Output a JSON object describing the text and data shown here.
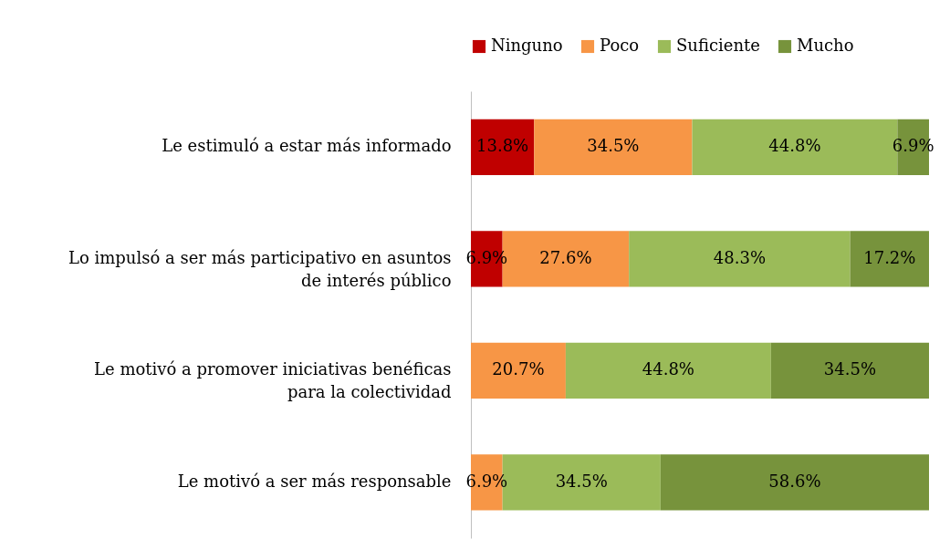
{
  "chart_data": {
    "type": "bar",
    "orientation": "horizontal",
    "stacked": true,
    "tick_labels": "y",
    "legend": "top",
    "categories": [
      "Le estimuló a estar más informado",
      "Lo impulsó a ser más participativo en asuntos de interés público",
      "Le motivó a promover iniciativas benéficas para la colectividad",
      "Le motivó a ser más responsable"
    ],
    "series": [
      {
        "name": "Ninguno",
        "color": "#c00000",
        "values": [
          13.8,
          6.9,
          null,
          null
        ],
        "value_labels": [
          "13.8%",
          "6.9%",
          null,
          null
        ]
      },
      {
        "name": "Poco",
        "color": "#f79646",
        "values": [
          34.5,
          27.6,
          20.7,
          6.9
        ],
        "value_labels": [
          "34.5%",
          "27.6%",
          "20.7%",
          "6.9%"
        ]
      },
      {
        "name": "Suficiente",
        "color": "#9bbb59",
        "values": [
          44.8,
          48.3,
          44.8,
          34.5
        ],
        "value_labels": [
          "44.8%",
          "48.3%",
          "44.8%",
          "34.5%"
        ]
      },
      {
        "name": "Mucho",
        "color": "#77933c",
        "values": [
          6.9,
          17.2,
          34.5,
          58.6
        ],
        "value_labels": [
          "6.9%",
          "17.2%",
          "34.5%",
          "58.6%"
        ]
      }
    ]
  }
}
